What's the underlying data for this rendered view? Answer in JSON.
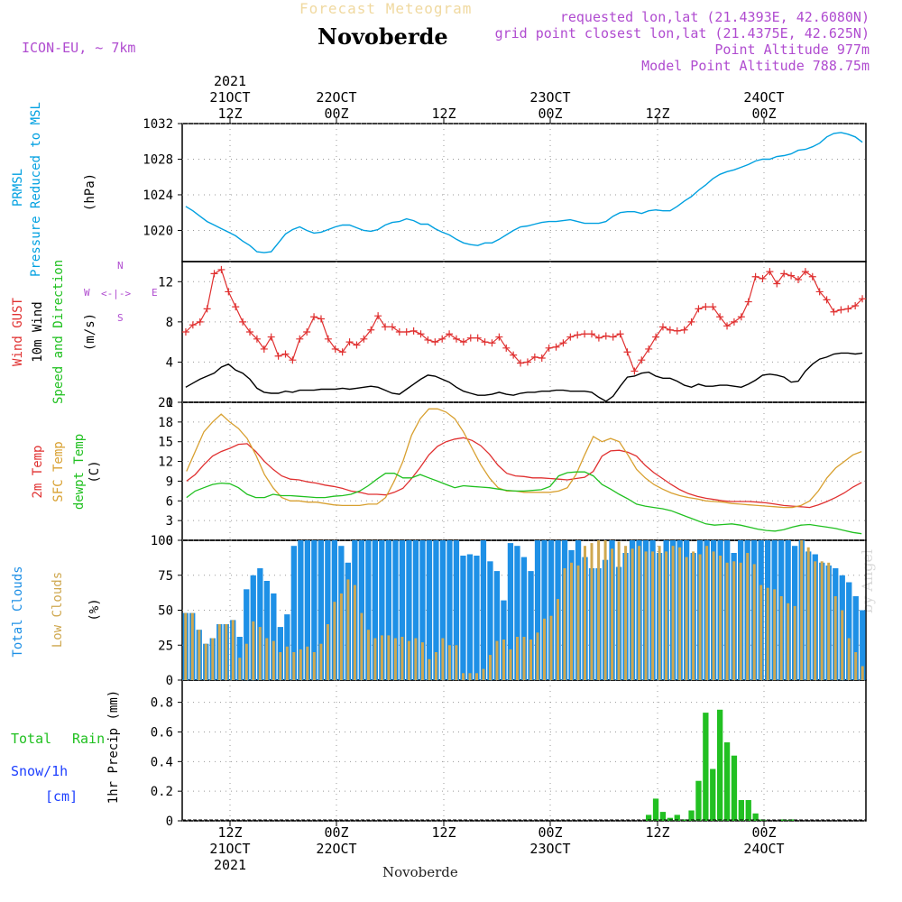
{
  "header": {
    "faded_title": "Forecast Meteogram",
    "location": "Novoberde",
    "model": "ICON-EU, ~ 7km",
    "requested": "requested lon,lat (21.4393E, 42.6080N)",
    "grid_point": "grid point closest lon,lat (21.4375E, 42.625N)",
    "point_altitude": "Point Altitude 977m",
    "model_altitude": "Model Point Altitude 788.75m",
    "watermark": "by Angel",
    "footer": "Novoberde"
  },
  "colors": {
    "pressure": "#00a0e0",
    "gust": "#e03030",
    "wind": "#000000",
    "temp2m": "#e03030",
    "sfc": "#d8a030",
    "dewpt": "#20c020",
    "total_cloud": "#1e90e6",
    "low_cloud": "#cfa850",
    "rain": "#22c022",
    "label_magenta": "#b04cd0",
    "label_blue": "#1e40ff",
    "label_green": "#20c020"
  },
  "time_axis": {
    "top": [
      {
        "lines": [
          "2021",
          "21OCT",
          "12Z"
        ]
      },
      {
        "lines": [
          "22OCT",
          "00Z"
        ]
      },
      {
        "lines": [
          "12Z"
        ]
      },
      {
        "lines": [
          "23OCT",
          "00Z"
        ]
      },
      {
        "lines": [
          "12Z"
        ]
      },
      {
        "lines": [
          "24OCT",
          "00Z"
        ]
      }
    ],
    "bottom": [
      {
        "lines": [
          "12Z",
          "21OCT",
          "2021"
        ]
      },
      {
        "lines": [
          "00Z",
          "22OCT"
        ]
      },
      {
        "lines": [
          "12Z"
        ]
      },
      {
        "lines": [
          "00Z",
          "23OCT"
        ]
      },
      {
        "lines": [
          "12Z"
        ]
      },
      {
        "lines": [
          "00Z",
          "24OCT"
        ]
      }
    ]
  },
  "panel_labels": {
    "p1": {
      "a": "PRMSL",
      "b": "Pressure Reduced to MSL",
      "unit": "(hPa)"
    },
    "p2": {
      "a": "Wind GUST",
      "b": "10m Wind",
      "c": "Speed and Direction",
      "unit": "(m/s)",
      "compass": {
        "n": "N",
        "w": "W",
        "e": "E",
        "s": "S",
        "arrows": "<-|->"
      }
    },
    "p3": {
      "a": "2m Temp",
      "b": "SFC Temp",
      "c": "dewpt Temp",
      "unit": "(C)"
    },
    "p4": {
      "a": "Total Clouds",
      "b": "Low Clouds",
      "unit": "(%)"
    },
    "p5": {
      "total": "Total",
      "rain": "Rain",
      "snow": "Snow/1h",
      "cm": "[cm]",
      "unit": "1hr Precip (mm)"
    }
  },
  "chart_data": [
    {
      "type": "line",
      "name": "PRMSL",
      "ylim": [
        1016.5,
        1032
      ],
      "yticks": [
        1020,
        1024,
        1028,
        1032
      ],
      "series": [
        {
          "name": "PRMSL",
          "values": [
            1022.7,
            1022.2,
            1021.6,
            1021.0,
            1020.6,
            1020.2,
            1019.8,
            1019.4,
            1018.8,
            1018.3,
            1017.6,
            1017.5,
            1017.6,
            1018.6,
            1019.6,
            1020.1,
            1020.4,
            1020.0,
            1019.7,
            1019.8,
            1020.1,
            1020.4,
            1020.6,
            1020.6,
            1020.3,
            1020.0,
            1019.9,
            1020.1,
            1020.6,
            1020.9,
            1021.0,
            1021.3,
            1021.1,
            1020.7,
            1020.7,
            1020.2,
            1019.8,
            1019.5,
            1019.0,
            1018.6,
            1018.4,
            1018.3,
            1018.6,
            1018.6,
            1019.0,
            1019.5,
            1020.0,
            1020.4,
            1020.5,
            1020.7,
            1020.9,
            1021.0,
            1021.0,
            1021.1,
            1021.2,
            1021.0,
            1020.8,
            1020.8,
            1020.8,
            1021.0,
            1021.6,
            1022.0,
            1022.1,
            1022.1,
            1021.9,
            1022.2,
            1022.3,
            1022.2,
            1022.2,
            1022.7,
            1023.3,
            1023.8,
            1024.5,
            1025.1,
            1025.8,
            1026.3,
            1026.6,
            1026.8,
            1027.1,
            1027.4,
            1027.8,
            1028.0,
            1028.0,
            1028.3,
            1028.4,
            1028.6,
            1029.0,
            1029.1,
            1029.4,
            1029.8,
            1030.5,
            1030.9,
            1031.0,
            1030.8,
            1030.5,
            1029.9
          ]
        }
      ]
    },
    {
      "type": "line",
      "name": "Wind",
      "ylim": [
        0,
        14
      ],
      "yticks": [
        0,
        4,
        8,
        12
      ],
      "series": [
        {
          "name": "Wind GUST",
          "values": [
            7.0,
            7.7,
            8.0,
            9.3,
            12.8,
            13.2,
            11.0,
            9.5,
            8.0,
            7.0,
            6.3,
            5.3,
            6.5,
            4.6,
            4.8,
            4.2,
            6.3,
            7.0,
            8.5,
            8.3,
            6.3,
            5.3,
            5.0,
            6.0,
            5.7,
            6.3,
            7.2,
            8.6,
            7.5,
            7.5,
            7.0,
            7.0,
            7.1,
            6.8,
            6.2,
            6.0,
            6.3,
            6.8,
            6.3,
            6.0,
            6.4,
            6.4,
            6.0,
            5.9,
            6.5,
            5.4,
            4.7,
            3.9,
            4.0,
            4.5,
            4.4,
            5.4,
            5.5,
            5.9,
            6.5,
            6.7,
            6.8,
            6.8,
            6.4,
            6.6,
            6.5,
            6.8,
            5.0,
            3.1,
            4.2,
            5.3,
            6.5,
            7.5,
            7.2,
            7.1,
            7.2,
            8.0,
            9.3,
            9.5,
            9.5,
            8.5,
            7.6,
            8.0,
            8.5,
            10.0,
            12.5,
            12.3,
            13.0,
            11.8,
            12.8,
            12.6,
            12.2,
            13.0,
            12.5,
            11.0,
            10.2,
            9.0,
            9.2,
            9.3,
            9.6,
            10.3
          ]
        },
        {
          "name": "10m Wind",
          "values": [
            1.5,
            1.9,
            2.3,
            2.6,
            2.9,
            3.5,
            3.8,
            3.2,
            2.9,
            2.3,
            1.4,
            1.0,
            0.9,
            0.9,
            1.1,
            1.0,
            1.2,
            1.2,
            1.2,
            1.3,
            1.3,
            1.3,
            1.4,
            1.3,
            1.4,
            1.5,
            1.6,
            1.5,
            1.2,
            0.9,
            0.8,
            1.3,
            1.8,
            2.3,
            2.7,
            2.6,
            2.3,
            2.0,
            1.5,
            1.1,
            0.9,
            0.7,
            0.7,
            0.8,
            1.0,
            0.8,
            0.7,
            0.9,
            1.0,
            1.0,
            1.1,
            1.1,
            1.2,
            1.2,
            1.1,
            1.1,
            1.1,
            1.0,
            0.5,
            0.1,
            0.6,
            1.6,
            2.5,
            2.6,
            2.9,
            3.0,
            2.6,
            2.4,
            2.4,
            2.1,
            1.7,
            1.5,
            1.8,
            1.6,
            1.6,
            1.7,
            1.7,
            1.6,
            1.5,
            1.8,
            2.2,
            2.7,
            2.8,
            2.7,
            2.5,
            2.0,
            2.1,
            3.1,
            3.8,
            4.3,
            4.5,
            4.8,
            4.9,
            4.9,
            4.8,
            4.9
          ]
        }
      ]
    },
    {
      "type": "line",
      "name": "Temperature",
      "ylim": [
        0,
        21
      ],
      "yticks": [
        0,
        3,
        6,
        9,
        12,
        15,
        18,
        21
      ],
      "series": [
        {
          "name": "2m Temp",
          "values": [
            9.0,
            10.0,
            11.5,
            12.8,
            13.5,
            14.0,
            14.6,
            14.7,
            13.5,
            12.0,
            10.8,
            9.8,
            9.3,
            9.2,
            8.9,
            8.7,
            8.4,
            8.2,
            7.9,
            7.5,
            7.3,
            7.0,
            7.0,
            6.9,
            7.3,
            7.9,
            9.4,
            11.1,
            13.0,
            14.3,
            15.0,
            15.4,
            15.6,
            15.2,
            14.4,
            13.1,
            11.4,
            10.2,
            9.8,
            9.7,
            9.5,
            9.5,
            9.4,
            9.3,
            9.2,
            9.4,
            9.6,
            10.5,
            12.8,
            13.6,
            13.7,
            13.4,
            12.8,
            11.4,
            10.3,
            9.4,
            8.5,
            7.7,
            7.1,
            6.7,
            6.4,
            6.2,
            6.0,
            5.9,
            5.9,
            5.9,
            5.8,
            5.7,
            5.5,
            5.3,
            5.2,
            5.1,
            5.0,
            5.4,
            5.9,
            6.5,
            7.2,
            8.1,
            8.8
          ]
        },
        {
          "name": "SFC Temp",
          "values": [
            10.5,
            13.5,
            16.5,
            18.0,
            19.2,
            18.0,
            17.0,
            15.5,
            13.0,
            10.0,
            8.0,
            6.5,
            6.0,
            6.0,
            5.8,
            5.8,
            5.6,
            5.4,
            5.3,
            5.3,
            5.3,
            5.5,
            5.5,
            6.5,
            9.0,
            12.0,
            16.0,
            18.5,
            20.0,
            20.0,
            19.5,
            18.5,
            16.5,
            14.0,
            11.5,
            9.5,
            8.0,
            7.5,
            7.5,
            7.3,
            7.3,
            7.3,
            7.3,
            7.5,
            8.0,
            10.0,
            13.0,
            15.8,
            15.0,
            15.5,
            15.0,
            13.0,
            10.8,
            9.5,
            8.5,
            7.8,
            7.2,
            6.8,
            6.5,
            6.3,
            6.0,
            5.9,
            5.8,
            5.6,
            5.5,
            5.4,
            5.3,
            5.2,
            5.1,
            5.0,
            5.0,
            5.3,
            6.0,
            7.5,
            9.5,
            11.0,
            12.0,
            13.0,
            13.5
          ]
        },
        {
          "name": "dewpt Temp",
          "values": [
            6.5,
            7.5,
            8.0,
            8.5,
            8.7,
            8.6,
            8.0,
            7.0,
            6.5,
            6.5,
            7.0,
            6.8,
            6.8,
            6.7,
            6.6,
            6.5,
            6.5,
            6.7,
            6.8,
            7.0,
            7.5,
            8.3,
            9.3,
            10.2,
            10.2,
            9.5,
            9.5,
            10.0,
            9.5,
            9.0,
            8.5,
            8.0,
            8.3,
            8.2,
            8.1,
            8.0,
            7.8,
            7.6,
            7.5,
            7.5,
            7.6,
            7.7,
            8.2,
            9.8,
            10.3,
            10.4,
            10.4,
            9.8,
            8.5,
            7.8,
            7.0,
            6.3,
            5.5,
            5.2,
            5.0,
            4.8,
            4.5,
            4.0,
            3.5,
            3.0,
            2.5,
            2.3,
            2.4,
            2.5,
            2.3,
            2.0,
            1.7,
            1.5,
            1.4,
            1.6,
            2.0,
            2.3,
            2.4,
            2.2,
            2.0,
            1.8,
            1.5,
            1.2,
            1.0
          ]
        }
      ]
    },
    {
      "type": "bar",
      "name": "Clouds",
      "ylim": [
        0,
        100
      ],
      "yticks": [
        0,
        25,
        50,
        75,
        100
      ],
      "series": [
        {
          "name": "Total Clouds",
          "values": [
            48,
            48,
            36,
            26,
            30,
            40,
            40,
            43,
            31,
            65,
            75,
            80,
            71,
            62,
            38,
            47,
            96,
            100,
            100,
            100,
            100,
            100,
            100,
            96,
            84,
            100,
            100,
            100,
            100,
            100,
            100,
            100,
            100,
            100,
            100,
            100,
            100,
            100,
            100,
            100,
            100,
            89,
            90,
            89,
            100,
            85,
            78,
            57,
            98,
            96,
            88,
            78,
            100,
            100,
            100,
            100,
            100,
            93,
            100,
            88,
            80,
            80,
            86,
            100,
            81,
            91,
            100,
            100,
            100,
            100,
            91,
            100,
            100,
            100,
            100,
            91,
            100,
            100,
            100,
            100,
            100,
            91,
            100,
            100,
            100,
            100,
            100,
            100,
            100,
            100,
            96,
            100,
            92,
            90,
            84,
            82,
            80,
            75,
            70,
            60,
            50
          ]
        },
        {
          "name": "Low Clouds",
          "values": [
            48,
            48,
            36,
            26,
            30,
            40,
            40,
            43,
            16,
            26,
            42,
            38,
            30,
            28,
            20,
            24,
            20,
            22,
            24,
            20,
            26,
            40,
            56,
            62,
            72,
            68,
            48,
            36,
            30,
            32,
            32,
            30,
            31,
            28,
            30,
            27,
            15,
            20,
            30,
            25,
            25,
            5,
            5,
            5,
            8,
            18,
            28,
            29,
            22,
            31,
            31,
            29,
            34,
            44,
            46,
            58,
            80,
            84,
            82,
            96,
            98,
            100,
            100,
            94,
            99,
            96,
            94,
            96,
            92,
            92,
            96,
            92,
            96,
            95,
            88,
            92,
            90,
            96,
            92,
            89,
            84,
            85,
            84,
            91,
            83,
            68,
            66,
            65,
            60,
            55,
            53,
            100,
            95,
            85,
            85,
            84,
            60,
            50,
            30,
            20,
            10
          ]
        }
      ]
    },
    {
      "type": "bar",
      "name": "1hr Precip",
      "ylim": [
        0,
        0.95
      ],
      "yticks": [
        0,
        0.2,
        0.4,
        0.6,
        0.8
      ],
      "series": [
        {
          "name": "Total Rain",
          "values": [
            0,
            0,
            0,
            0,
            0,
            0,
            0,
            0,
            0,
            0,
            0,
            0,
            0,
            0,
            0,
            0,
            0,
            0,
            0,
            0,
            0,
            0,
            0,
            0,
            0,
            0,
            0,
            0,
            0,
            0,
            0,
            0,
            0,
            0,
            0,
            0,
            0,
            0,
            0,
            0,
            0,
            0,
            0,
            0,
            0,
            0,
            0,
            0,
            0,
            0,
            0,
            0,
            0,
            0,
            0,
            0,
            0,
            0,
            0,
            0,
            0,
            0,
            0,
            0,
            0,
            0.04,
            0.15,
            0.06,
            0.02,
            0.04,
            0.01,
            0.07,
            0.27,
            0.73,
            0.35,
            0.75,
            0.53,
            0.44,
            0.14,
            0.14,
            0.05,
            0.01,
            0,
            0,
            0.01,
            0.01,
            0,
            0,
            0,
            0,
            0,
            0,
            0,
            0,
            0,
            0
          ]
        }
      ]
    }
  ]
}
